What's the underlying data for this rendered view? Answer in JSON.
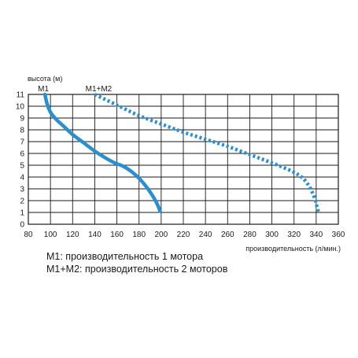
{
  "chart_data": {
    "type": "line",
    "ylabel": "высота (м)",
    "xlabel": "производительность (л/мин.)",
    "xlim": [
      80,
      360
    ],
    "ylim": [
      0,
      11
    ],
    "xticks": [
      80,
      100,
      120,
      140,
      160,
      180,
      200,
      220,
      240,
      260,
      280,
      300,
      320,
      340,
      360
    ],
    "yticks": [
      0,
      1,
      2,
      3,
      4,
      5,
      6,
      7,
      8,
      9,
      10,
      11
    ],
    "grid": true,
    "series": [
      {
        "name": "M1",
        "style": "solid",
        "color": "#2a8fd0",
        "points": [
          [
            95,
            11
          ],
          [
            97,
            10.2
          ],
          [
            100,
            9.5
          ],
          [
            105,
            8.9
          ],
          [
            112,
            8.3
          ],
          [
            120,
            7.6
          ],
          [
            130,
            6.9
          ],
          [
            140,
            6.2
          ],
          [
            150,
            5.6
          ],
          [
            158,
            5.2
          ],
          [
            166,
            4.9
          ],
          [
            174,
            4.4
          ],
          [
            181,
            3.8
          ],
          [
            188,
            3.0
          ],
          [
            193,
            2.3
          ],
          [
            197,
            1.6
          ],
          [
            199,
            1.1
          ]
        ]
      },
      {
        "name": "M1+M2",
        "style": "dotted",
        "color": "#2a8fd0",
        "points": [
          [
            140,
            11
          ],
          [
            160,
            10.1
          ],
          [
            180,
            9.2
          ],
          [
            200,
            8.5
          ],
          [
            220,
            7.8
          ],
          [
            240,
            7.2
          ],
          [
            260,
            6.6
          ],
          [
            280,
            5.9
          ],
          [
            300,
            5.2
          ],
          [
            320,
            4.4
          ],
          [
            330,
            3.7
          ],
          [
            337,
            2.6
          ],
          [
            341,
            1.4
          ],
          [
            342,
            1.0
          ]
        ]
      }
    ]
  },
  "legend": {
    "line1": "M1: производительность 1 мотора",
    "line2": "M1+M2: производительность 2 моторов"
  }
}
